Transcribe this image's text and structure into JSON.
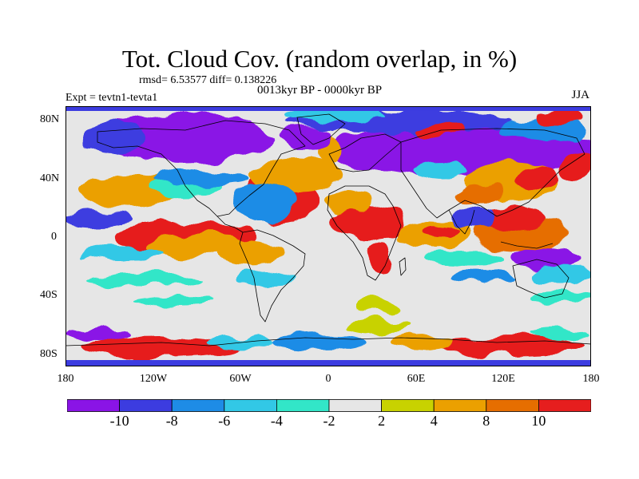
{
  "title": "Tot. Cloud Cov. (random overlap, in %)",
  "stats": "rmsd= 6.53577 diff= 0.138226",
  "experiment": "Expt = tevtn1-tevta1",
  "period": "0013kyr BP - 0000kyr BP",
  "season": "JJA",
  "lat_ticks": [
    "80N",
    "40N",
    "0",
    "40S",
    "80S"
  ],
  "lon_ticks": [
    "180",
    "120W",
    "60W",
    "0",
    "60E",
    "120E",
    "180"
  ],
  "colorbar": {
    "levels": [
      "-10",
      "-8",
      "-6",
      "-4",
      "-2",
      "2",
      "4",
      "8",
      "10"
    ],
    "colors": [
      "#8a14e6",
      "#3c3ce0",
      "#1e8ce6",
      "#32c8e6",
      "#32e6c8",
      "#e6e6e6",
      "#c8d200",
      "#eba000",
      "#e66e00",
      "#e61e1e"
    ]
  },
  "colors": {
    "background": "#e6e6e6",
    "coast": "#000000"
  }
}
